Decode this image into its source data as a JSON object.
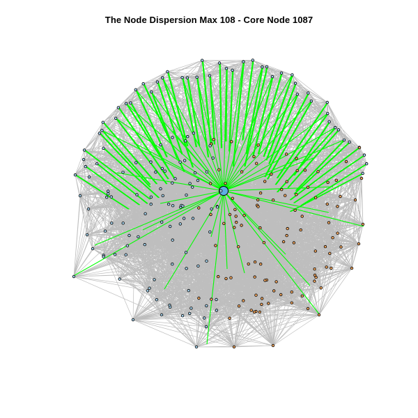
{
  "title": "The Node Dispersion Max 108 - Core Node 1087",
  "colors": {
    "background": "#ffffff",
    "edge": "#bebebe",
    "highlight_edge": "#00ff00",
    "core_fill": "#5eaee3",
    "node_blue": "#a6d4ee",
    "node_orange": "#f2a65e",
    "node_border": "#000000"
  },
  "chart_data": {
    "type": "network",
    "title": "The Node Dispersion Max 108 - Core Node 1087",
    "core_node": 1087,
    "max_dispersion": 108,
    "node_groups": [
      {
        "color": "node_blue",
        "count_estimate": 130
      },
      {
        "color": "node_orange",
        "count_estimate": 75
      }
    ],
    "edge_styles": [
      "grey background edges",
      "green edges from core node"
    ]
  }
}
